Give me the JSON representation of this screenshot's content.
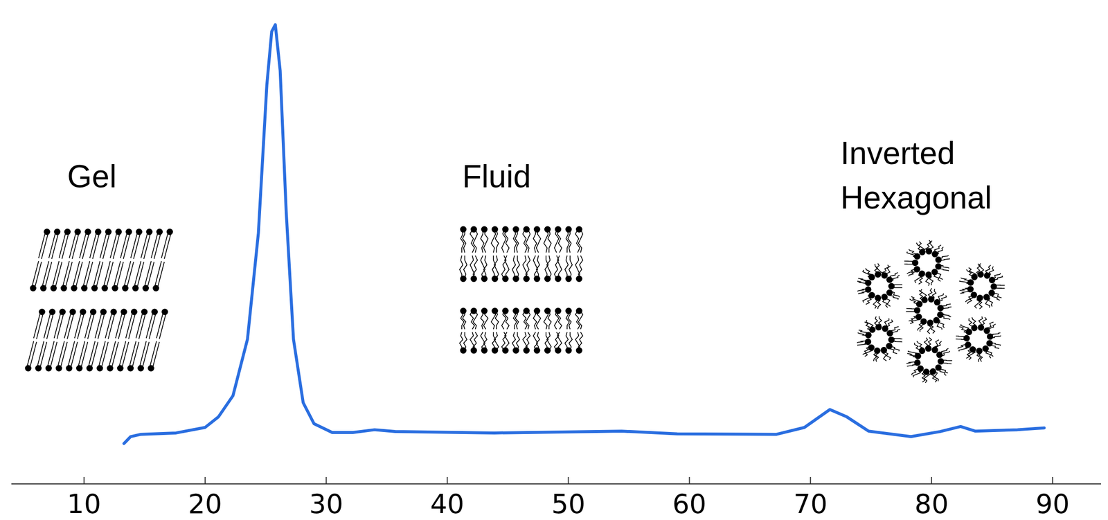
{
  "chart_data": {
    "type": "line",
    "x": [
      13.3,
      13.85,
      14.7,
      17.6,
      20.0,
      21.1,
      22.3,
      23.5,
      24.4,
      25.1,
      25.5,
      25.8,
      26.2,
      26.7,
      27.3,
      28.1,
      29.0,
      30.5,
      32.2,
      34.0,
      35.7,
      43.9,
      54.4,
      59.0,
      67.2,
      69.5,
      71.6,
      73.0,
      74.8,
      78.3,
      80.7,
      82.4,
      83.6,
      87.1,
      89.3
    ],
    "values": [
      8.8,
      10.3,
      10.8,
      11.1,
      12.3,
      14.6,
      19.2,
      31.5,
      54.6,
      86.9,
      98.5,
      100,
      90,
      59.2,
      31.5,
      17.7,
      13.1,
      11.2,
      11.2,
      11.8,
      11.4,
      11.1,
      11.5,
      10.9,
      10.8,
      12.3,
      16.2,
      14.6,
      11.5,
      10.3,
      11.4,
      12.5,
      11.5,
      11.8,
      12.2
    ],
    "color": "#2a6ee0",
    "xlim": [
      4,
      94
    ],
    "xticks": [
      10,
      20,
      30,
      40,
      50,
      60,
      70,
      80,
      90
    ],
    "ylim": [
      0,
      100
    ],
    "tick_labels": "x",
    "grid": false,
    "annotations": [
      "Gel",
      "Fluid",
      "Inverted Hexagonal"
    ]
  }
}
